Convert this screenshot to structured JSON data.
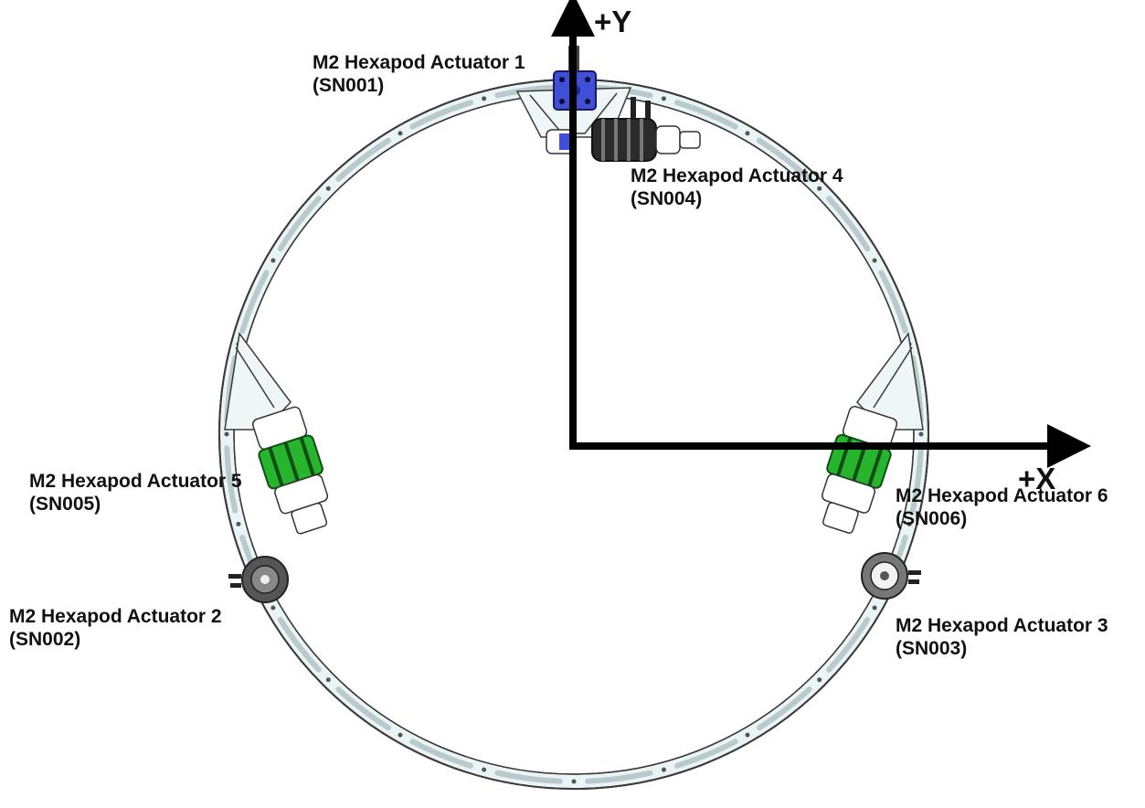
{
  "axes": {
    "y_label": "+Y",
    "x_label": "+X"
  },
  "actuators": [
    {
      "name": "M2 Hexapod Actuator 1",
      "serial": "(SN001)"
    },
    {
      "name": "M2 Hexapod Actuator 2",
      "serial": "(SN002)"
    },
    {
      "name": "M2 Hexapod Actuator 3",
      "serial": "(SN003)"
    },
    {
      "name": "M2 Hexapod Actuator 4",
      "serial": "(SN004)"
    },
    {
      "name": "M2 Hexapod Actuator 5",
      "serial": "(SN005)"
    },
    {
      "name": "M2 Hexapod Actuator 6",
      "serial": "(SN006)"
    }
  ],
  "colors": {
    "ring_fill": "#e9f4f6",
    "ring_stroke": "#3a3a3a",
    "actuator_1_body": "#3f4fd8",
    "actuator_green": "#27b52e",
    "actuator_dark": "#2b2b2b",
    "axis": "#000000"
  }
}
